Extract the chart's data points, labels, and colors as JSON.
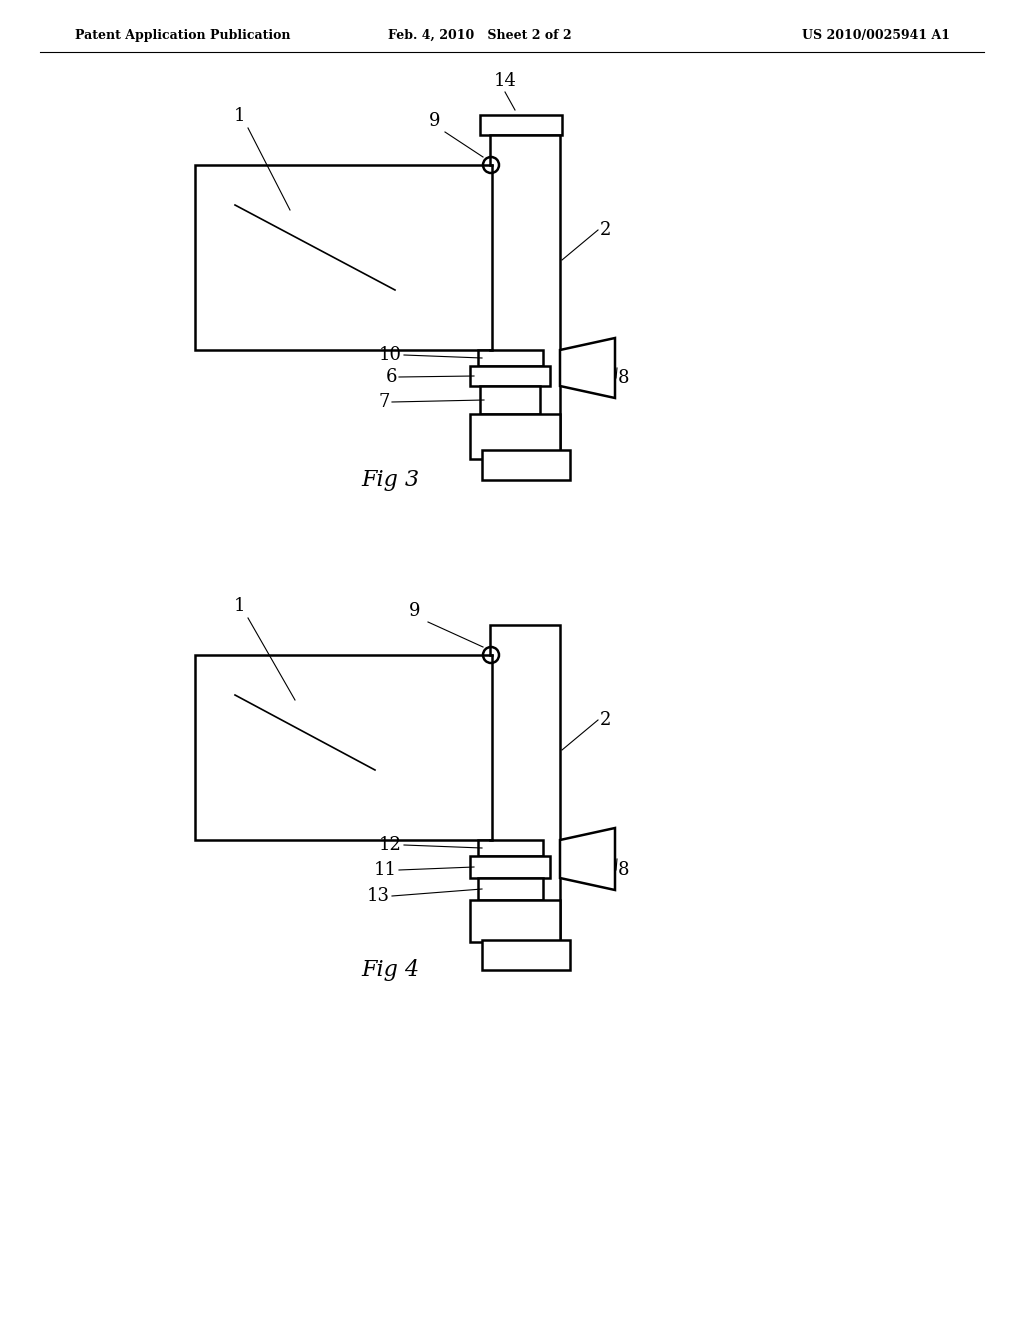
{
  "bg_color": "#ffffff",
  "line_color": "#000000",
  "header_left": "Patent Application Publication",
  "header_mid": "Feb. 4, 2010   Sheet 2 of 2",
  "header_right": "US 2010/0025941 A1",
  "fig3_label": "Fig 3",
  "fig4_label": "Fig 4"
}
